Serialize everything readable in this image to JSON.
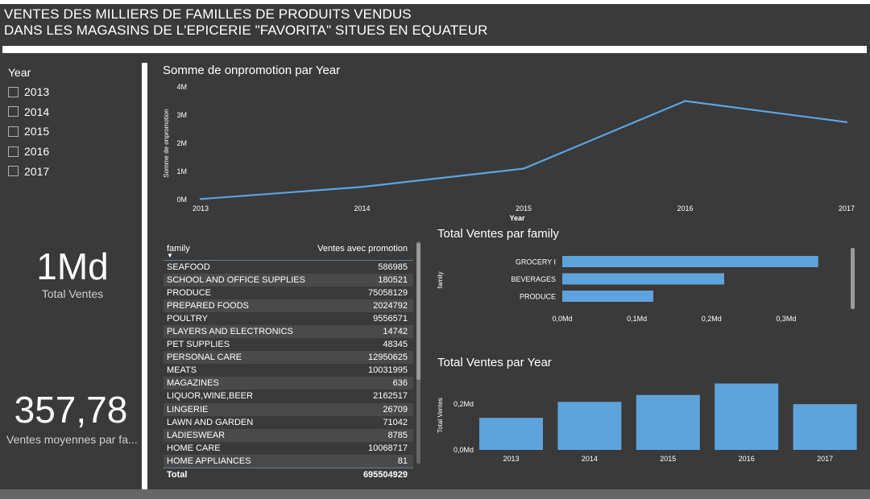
{
  "header": {
    "title_line1": "VENTES DES MILLIERS DE FAMILLES DE PRODUITS VENDUS",
    "title_line2": "DANS LES MAGASINS DE L'EPICERIE \"FAVORITA\" SITUES EN EQUATEUR"
  },
  "slicer": {
    "title": "Year",
    "items": [
      {
        "label": "2013",
        "checked": false
      },
      {
        "label": "2014",
        "checked": false
      },
      {
        "label": "2015",
        "checked": false
      },
      {
        "label": "2016",
        "checked": false
      },
      {
        "label": "2017",
        "checked": false
      }
    ]
  },
  "cards": {
    "total_ventes": {
      "value": "1Md",
      "label": "Total Ventes"
    },
    "ventes_moyennes": {
      "value": "357,78",
      "label": "Ventes moyennes par fa..."
    }
  },
  "colors": {
    "accent": "#5fa3dc",
    "background": "#3a3a3a",
    "text": "#ffffff"
  },
  "chart_data": [
    {
      "id": "promo_line",
      "type": "line",
      "title": "Somme de onpromotion par Year",
      "xlabel": "Year",
      "ylabel": "Somme de onpromotion",
      "x": [
        "2013",
        "2014",
        "2015",
        "2016",
        "2017"
      ],
      "values": [
        0.02,
        0.45,
        1.1,
        3.5,
        2.75
      ],
      "ylim": [
        0,
        4
      ],
      "yticks": [
        "0M",
        "1M",
        "2M",
        "3M",
        "4M"
      ]
    },
    {
      "id": "family_bar",
      "type": "bar",
      "orientation": "horizontal",
      "title": "Total Ventes par family",
      "ylabel": "family",
      "categories": [
        "GROCERY I",
        "BEVERAGES",
        "PRODUCE"
      ],
      "values": [
        0.343,
        0.217,
        0.122
      ],
      "xlim": [
        0,
        0.38
      ],
      "xticks": [
        "0,0Md",
        "0,1Md",
        "0,2Md",
        "0,3Md"
      ]
    },
    {
      "id": "year_bar",
      "type": "bar",
      "title": "Total Ventes par Year",
      "ylabel": "Total Ventes",
      "categories": [
        "2013",
        "2014",
        "2015",
        "2016",
        "2017"
      ],
      "values": [
        0.14,
        0.21,
        0.24,
        0.29,
        0.2
      ],
      "ylim": [
        0,
        0.32
      ],
      "yticks": [
        "0,0Md",
        "0,2Md"
      ]
    }
  ],
  "table": {
    "col_family": "family",
    "col_ventes": "Ventes avec promotion",
    "sort_glyph": "▼",
    "rows": [
      {
        "family": "SEAFOOD",
        "value": "586985"
      },
      {
        "family": "SCHOOL AND OFFICE SUPPLIES",
        "value": "180521"
      },
      {
        "family": "PRODUCE",
        "value": "75058129"
      },
      {
        "family": "PREPARED FOODS",
        "value": "2024792"
      },
      {
        "family": "POULTRY",
        "value": "9556571"
      },
      {
        "family": "PLAYERS AND ELECTRONICS",
        "value": "14742"
      },
      {
        "family": "PET SUPPLIES",
        "value": "48345"
      },
      {
        "family": "PERSONAL CARE",
        "value": "12950625"
      },
      {
        "family": "MEATS",
        "value": "10031995"
      },
      {
        "family": "MAGAZINES",
        "value": "636"
      },
      {
        "family": "LIQUOR,WINE,BEER",
        "value": "2162517"
      },
      {
        "family": "LINGERIE",
        "value": "26709"
      },
      {
        "family": "LAWN AND GARDEN",
        "value": "71042"
      },
      {
        "family": "LADIESWEAR",
        "value": "8785"
      },
      {
        "family": "HOME CARE",
        "value": "10068717"
      },
      {
        "family": "HOME APPLIANCES",
        "value": "81"
      }
    ],
    "total_label": "Total",
    "total_value": "695504929"
  }
}
